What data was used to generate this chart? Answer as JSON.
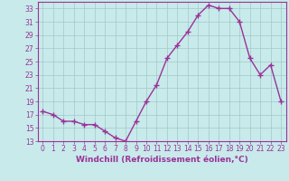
{
  "x": [
    0,
    1,
    2,
    3,
    4,
    5,
    6,
    7,
    8,
    9,
    10,
    11,
    12,
    13,
    14,
    15,
    16,
    17,
    18,
    19,
    20,
    21,
    22,
    23
  ],
  "y": [
    17.5,
    17.0,
    16.0,
    16.0,
    15.5,
    15.5,
    14.5,
    13.5,
    13.0,
    16.0,
    19.0,
    21.5,
    25.5,
    27.5,
    29.5,
    32.0,
    33.5,
    33.0,
    33.0,
    31.0,
    25.5,
    23.0,
    24.5,
    19.0
  ],
  "line_color": "#993399",
  "marker": "+",
  "markersize": 4,
  "linewidth": 1.0,
  "bg_color": "#c8eaea",
  "grid_color": "#a0c8c8",
  "xlabel": "Windchill (Refroidissement éolien,°C)",
  "xlim": [
    -0.5,
    23.5
  ],
  "ylim": [
    13,
    34
  ],
  "yticks": [
    13,
    15,
    17,
    19,
    21,
    23,
    25,
    27,
    29,
    31,
    33
  ],
  "xticks": [
    0,
    1,
    2,
    3,
    4,
    5,
    6,
    7,
    8,
    9,
    10,
    11,
    12,
    13,
    14,
    15,
    16,
    17,
    18,
    19,
    20,
    21,
    22,
    23
  ],
  "xlabel_fontsize": 6.5,
  "tick_fontsize": 5.5,
  "axis_color": "#993399"
}
